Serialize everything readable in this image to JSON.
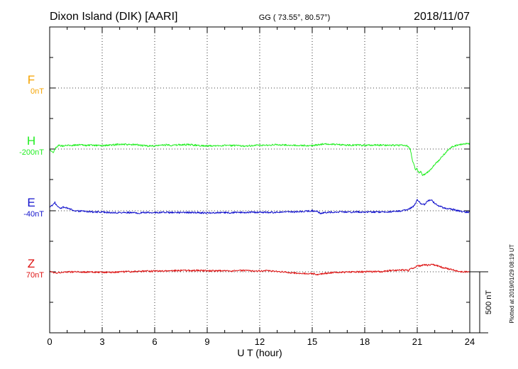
{
  "header": {
    "station": "Dixon Island (DIK)  [AARI]",
    "coords": "GG ( 73.55°,  80.57°)",
    "date": "2018/11/07"
  },
  "side_note": "Plotted at 2019/01/29 08:19 UT",
  "scale_bar": {
    "label": "500 nT",
    "value_nT": 500
  },
  "chart_data": {
    "type": "line",
    "xlabel": "U T (hour)",
    "xlim": [
      0,
      24
    ],
    "xticks": [
      0,
      3,
      6,
      9,
      12,
      15,
      18,
      21,
      24
    ],
    "grid": true,
    "series": [
      {
        "name": "F",
        "baseline_label": "0nT",
        "baseline_nT": 0,
        "color": "#f5a300",
        "values": []
      },
      {
        "name": "H",
        "baseline_label": "-200nT",
        "baseline_nT": -200,
        "color": "#22ee22",
        "points": [
          [
            0,
            -200
          ],
          [
            0.2,
            -230
          ],
          [
            0.35,
            -190
          ],
          [
            0.5,
            -170
          ],
          [
            0.8,
            -175
          ],
          [
            1,
            -170
          ],
          [
            1.3,
            -170
          ],
          [
            1.6,
            -165
          ],
          [
            2,
            -170
          ],
          [
            2.5,
            -170
          ],
          [
            3,
            -172
          ],
          [
            3.5,
            -168
          ],
          [
            4,
            -160
          ],
          [
            4.5,
            -165
          ],
          [
            5,
            -165
          ],
          [
            5.5,
            -175
          ],
          [
            6,
            -175
          ],
          [
            6.3,
            -170
          ],
          [
            6.7,
            -165
          ],
          [
            7,
            -170
          ],
          [
            7.5,
            -165
          ],
          [
            8,
            -165
          ],
          [
            8.5,
            -170
          ],
          [
            9,
            -175
          ],
          [
            9.5,
            -175
          ],
          [
            10,
            -170
          ],
          [
            10.5,
            -172
          ],
          [
            11,
            -175
          ],
          [
            11.5,
            -172
          ],
          [
            12,
            -170
          ],
          [
            12.5,
            -168
          ],
          [
            13,
            -165
          ],
          [
            13.5,
            -168
          ],
          [
            14,
            -170
          ],
          [
            14.5,
            -172
          ],
          [
            15,
            -172
          ],
          [
            15.3,
            -165
          ],
          [
            15.6,
            -160
          ],
          [
            16,
            -160
          ],
          [
            16.5,
            -165
          ],
          [
            17,
            -168
          ],
          [
            17.5,
            -168
          ],
          [
            18,
            -170
          ],
          [
            18.5,
            -168
          ],
          [
            19,
            -168
          ],
          [
            19.5,
            -170
          ],
          [
            20,
            -170
          ],
          [
            20.4,
            -172
          ],
          [
            20.6,
            -200
          ],
          [
            20.7,
            -280
          ],
          [
            20.8,
            -320
          ],
          [
            20.9,
            -370
          ],
          [
            21,
            -360
          ],
          [
            21.1,
            -400
          ],
          [
            21.2,
            -380
          ],
          [
            21.3,
            -420
          ],
          [
            21.5,
            -400
          ],
          [
            21.7,
            -380
          ],
          [
            21.9,
            -340
          ],
          [
            22.2,
            -300
          ],
          [
            22.5,
            -250
          ],
          [
            22.8,
            -200
          ],
          [
            23,
            -180
          ],
          [
            23.4,
            -165
          ],
          [
            23.8,
            -155
          ],
          [
            24,
            -160
          ]
        ]
      },
      {
        "name": "E",
        "baseline_label": "-40nT",
        "baseline_nT": -40,
        "color": "#1111cc",
        "points": [
          [
            0,
            -10
          ],
          [
            0.2,
            10
          ],
          [
            0.3,
            30
          ],
          [
            0.4,
            0
          ],
          [
            0.6,
            -20
          ],
          [
            0.8,
            -10
          ],
          [
            1,
            -20
          ],
          [
            1.2,
            -30
          ],
          [
            1.5,
            -40
          ],
          [
            2,
            -45
          ],
          [
            2.5,
            -50
          ],
          [
            3,
            -50
          ],
          [
            3.5,
            -55
          ],
          [
            4,
            -55
          ],
          [
            4.5,
            -55
          ],
          [
            5,
            -58
          ],
          [
            5.5,
            -55
          ],
          [
            6,
            -55
          ],
          [
            6.5,
            -53
          ],
          [
            7,
            -55
          ],
          [
            7.5,
            -55
          ],
          [
            8,
            -55
          ],
          [
            8.5,
            -55
          ],
          [
            9,
            -58
          ],
          [
            9.5,
            -55
          ],
          [
            10,
            -55
          ],
          [
            10.5,
            -55
          ],
          [
            11,
            -53
          ],
          [
            11.5,
            -53
          ],
          [
            12,
            -52
          ],
          [
            12.5,
            -53
          ],
          [
            13,
            -52
          ],
          [
            13.5,
            -50
          ],
          [
            14,
            -50
          ],
          [
            14.5,
            -45
          ],
          [
            15,
            -40
          ],
          [
            15.3,
            -45
          ],
          [
            15.5,
            -65
          ],
          [
            15.7,
            -55
          ],
          [
            16,
            -52
          ],
          [
            16.5,
            -50
          ],
          [
            17,
            -50
          ],
          [
            17.5,
            -50
          ],
          [
            18,
            -50
          ],
          [
            18.5,
            -50
          ],
          [
            19,
            -50
          ],
          [
            19.5,
            -48
          ],
          [
            20,
            -42
          ],
          [
            20.3,
            -35
          ],
          [
            20.6,
            -20
          ],
          [
            20.8,
            0
          ],
          [
            20.9,
            20
          ],
          [
            21,
            50
          ],
          [
            21.2,
            20
          ],
          [
            21.4,
            10
          ],
          [
            21.6,
            40
          ],
          [
            21.8,
            50
          ],
          [
            22,
            20
          ],
          [
            22.2,
            0
          ],
          [
            22.5,
            -15
          ],
          [
            22.8,
            -25
          ],
          [
            23.2,
            -35
          ],
          [
            23.6,
            -50
          ],
          [
            24,
            -50
          ]
        ]
      },
      {
        "name": "Z",
        "baseline_label": "70nT",
        "baseline_nT": 70,
        "color": "#dd1111",
        "points": [
          [
            0,
            70
          ],
          [
            0.3,
            60
          ],
          [
            0.6,
            65
          ],
          [
            1,
            70
          ],
          [
            1.5,
            70
          ],
          [
            2,
            68
          ],
          [
            2.5,
            66
          ],
          [
            3,
            65
          ],
          [
            3.5,
            66
          ],
          [
            4,
            68
          ],
          [
            4.5,
            70
          ],
          [
            5,
            72
          ],
          [
            5.5,
            75
          ],
          [
            6,
            75
          ],
          [
            6.5,
            76
          ],
          [
            7,
            78
          ],
          [
            7.5,
            82
          ],
          [
            8,
            80
          ],
          [
            8.5,
            80
          ],
          [
            9,
            78
          ],
          [
            9.5,
            78
          ],
          [
            10,
            78
          ],
          [
            10.5,
            78
          ],
          [
            11,
            80
          ],
          [
            11.5,
            78
          ],
          [
            12,
            78
          ],
          [
            12.5,
            78
          ],
          [
            13,
            74
          ],
          [
            13.5,
            66
          ],
          [
            14,
            60
          ],
          [
            14.5,
            56
          ],
          [
            15,
            55
          ],
          [
            15.3,
            48
          ],
          [
            15.6,
            55
          ],
          [
            16,
            62
          ],
          [
            16.5,
            66
          ],
          [
            17,
            67
          ],
          [
            17.5,
            70
          ],
          [
            18,
            70
          ],
          [
            18.5,
            70
          ],
          [
            19,
            72
          ],
          [
            19.5,
            80
          ],
          [
            20,
            84
          ],
          [
            20.3,
            84
          ],
          [
            20.5,
            80
          ],
          [
            20.6,
            92
          ],
          [
            20.8,
            100
          ],
          [
            21,
            120
          ],
          [
            21.2,
            116
          ],
          [
            21.4,
            130
          ],
          [
            21.6,
            124
          ],
          [
            21.8,
            130
          ],
          [
            22,
            125
          ],
          [
            22.3,
            112
          ],
          [
            22.6,
            100
          ],
          [
            22.9,
            90
          ],
          [
            23.2,
            80
          ],
          [
            23.5,
            72
          ],
          [
            23.8,
            70
          ],
          [
            24,
            70
          ]
        ]
      }
    ]
  }
}
